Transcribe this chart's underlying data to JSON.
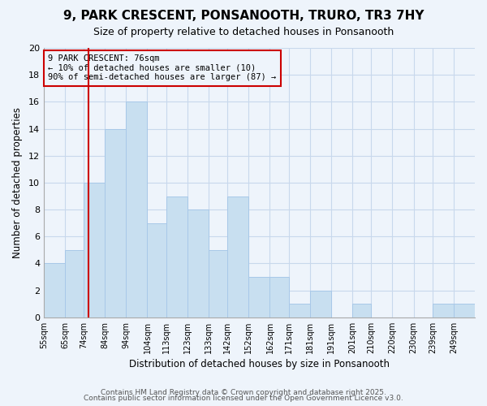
{
  "title": "9, PARK CRESCENT, PONSANOOTH, TRURO, TR3 7HY",
  "subtitle": "Size of property relative to detached houses in Ponsanooth",
  "xlabel": "Distribution of detached houses by size in Ponsanooth",
  "ylabel": "Number of detached properties",
  "bar_color": "#c8dff0",
  "bar_edge_color": "#a8c8e8",
  "grid_color": "#c8d8ec",
  "background_color": "#eef4fb",
  "bin_labels": [
    "55sqm",
    "65sqm",
    "74sqm",
    "84sqm",
    "94sqm",
    "104sqm",
    "113sqm",
    "123sqm",
    "133sqm",
    "142sqm",
    "152sqm",
    "162sqm",
    "171sqm",
    "181sqm",
    "191sqm",
    "201sqm",
    "210sqm",
    "220sqm",
    "230sqm",
    "239sqm",
    "249sqm"
  ],
  "bin_edges": [
    55,
    65,
    74,
    84,
    94,
    104,
    113,
    123,
    133,
    142,
    152,
    162,
    171,
    181,
    191,
    201,
    210,
    220,
    230,
    239,
    249,
    259
  ],
  "counts": [
    4,
    5,
    10,
    14,
    16,
    7,
    9,
    8,
    5,
    9,
    3,
    3,
    1,
    2,
    0,
    1,
    0,
    0,
    0,
    1,
    1
  ],
  "ylim": [
    0,
    20
  ],
  "yticks": [
    0,
    2,
    4,
    6,
    8,
    10,
    12,
    14,
    16,
    18,
    20
  ],
  "vline_x": 76,
  "vline_color": "#cc0000",
  "ann_line1": "9 PARK CRESCENT: 76sqm",
  "ann_line2": "← 10% of detached houses are smaller (10)",
  "ann_line3": "90% of semi-detached houses are larger (87) →",
  "annotation_box_edge": "#cc0000",
  "footer1": "Contains HM Land Registry data © Crown copyright and database right 2025.",
  "footer2": "Contains public sector information licensed under the Open Government Licence v3.0."
}
